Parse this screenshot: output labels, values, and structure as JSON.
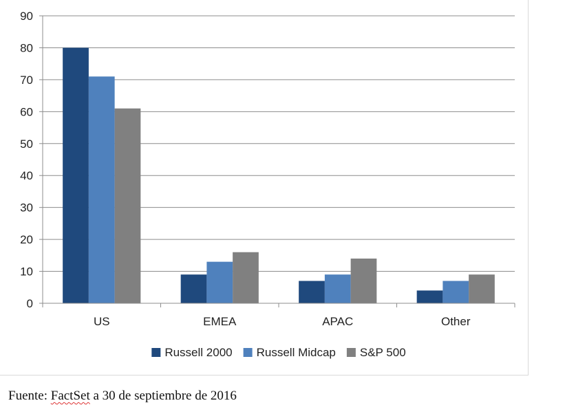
{
  "colors": {
    "grid": "#8c8c8c",
    "axis": "#8c8c8c",
    "text": "#222222"
  },
  "chart_data": {
    "type": "bar",
    "title": "",
    "xlabel": "",
    "ylabel": "",
    "categories": [
      "US",
      "EMEA",
      "APAC",
      "Other"
    ],
    "series": [
      {
        "name": "Russell 2000",
        "color": "#1f497d",
        "values": [
          80,
          9,
          7,
          4
        ]
      },
      {
        "name": "Russell Midcap",
        "color": "#4f81bd",
        "values": [
          71,
          13,
          9,
          7
        ]
      },
      {
        "name": "S&P 500",
        "color": "#808080",
        "values": [
          61,
          16,
          14,
          9
        ]
      }
    ],
    "ylim": [
      0,
      90
    ],
    "yticks": [
      0,
      10,
      20,
      30,
      40,
      50,
      60,
      70,
      80,
      90
    ],
    "grid": true,
    "legend": "bottom"
  },
  "footer": {
    "prefix": "Fuente: ",
    "source_name": "FactSet",
    "suffix": " a 30 de septiembre de 2016"
  }
}
